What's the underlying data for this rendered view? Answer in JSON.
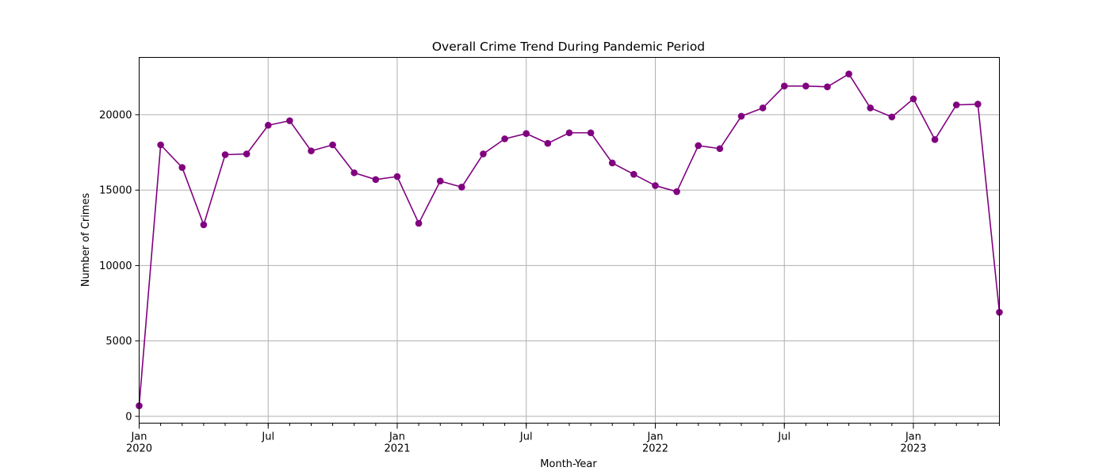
{
  "chart_data": {
    "type": "line",
    "title": "Overall Crime Trend During Pandemic Period",
    "xlabel": "Month-Year",
    "ylabel": "Number of Crimes",
    "x_start": "2020-01",
    "x_end": "2023-05",
    "x_ticks": [
      {
        "date": "2020-01",
        "label": "Jan",
        "year": "2020"
      },
      {
        "date": "2020-07",
        "label": "Jul",
        "year": ""
      },
      {
        "date": "2021-01",
        "label": "Jan",
        "year": "2021"
      },
      {
        "date": "2021-07",
        "label": "Jul",
        "year": ""
      },
      {
        "date": "2022-01",
        "label": "Jan",
        "year": "2022"
      },
      {
        "date": "2022-07",
        "label": "Jul",
        "year": ""
      },
      {
        "date": "2023-01",
        "label": "Jan",
        "year": "2023"
      }
    ],
    "y_ticks": [
      0,
      5000,
      10000,
      15000,
      20000
    ],
    "ylim": [
      -450,
      23800
    ],
    "grid": true,
    "color": "#800080",
    "marker": "circle",
    "x": [
      "2020-01",
      "2020-02",
      "2020-03",
      "2020-04",
      "2020-05",
      "2020-06",
      "2020-07",
      "2020-08",
      "2020-09",
      "2020-10",
      "2020-11",
      "2020-12",
      "2021-01",
      "2021-02",
      "2021-03",
      "2021-04",
      "2021-05",
      "2021-06",
      "2021-07",
      "2021-08",
      "2021-09",
      "2021-10",
      "2021-11",
      "2021-12",
      "2022-01",
      "2022-02",
      "2022-03",
      "2022-04",
      "2022-05",
      "2022-06",
      "2022-07",
      "2022-08",
      "2022-09",
      "2022-10",
      "2022-11",
      "2022-12",
      "2023-01",
      "2023-02",
      "2023-03",
      "2023-04",
      "2023-05"
    ],
    "values": [
      700,
      18000,
      16500,
      12700,
      17350,
      17400,
      19300,
      19600,
      17600,
      18000,
      16150,
      15700,
      15900,
      12800,
      15600,
      15200,
      17400,
      18400,
      18750,
      18100,
      18800,
      18800,
      16800,
      16050,
      15300,
      14900,
      17950,
      17750,
      19900,
      20450,
      21900,
      21900,
      21850,
      22700,
      20450,
      19850,
      21050,
      18350,
      20650,
      20700,
      6900
    ]
  }
}
